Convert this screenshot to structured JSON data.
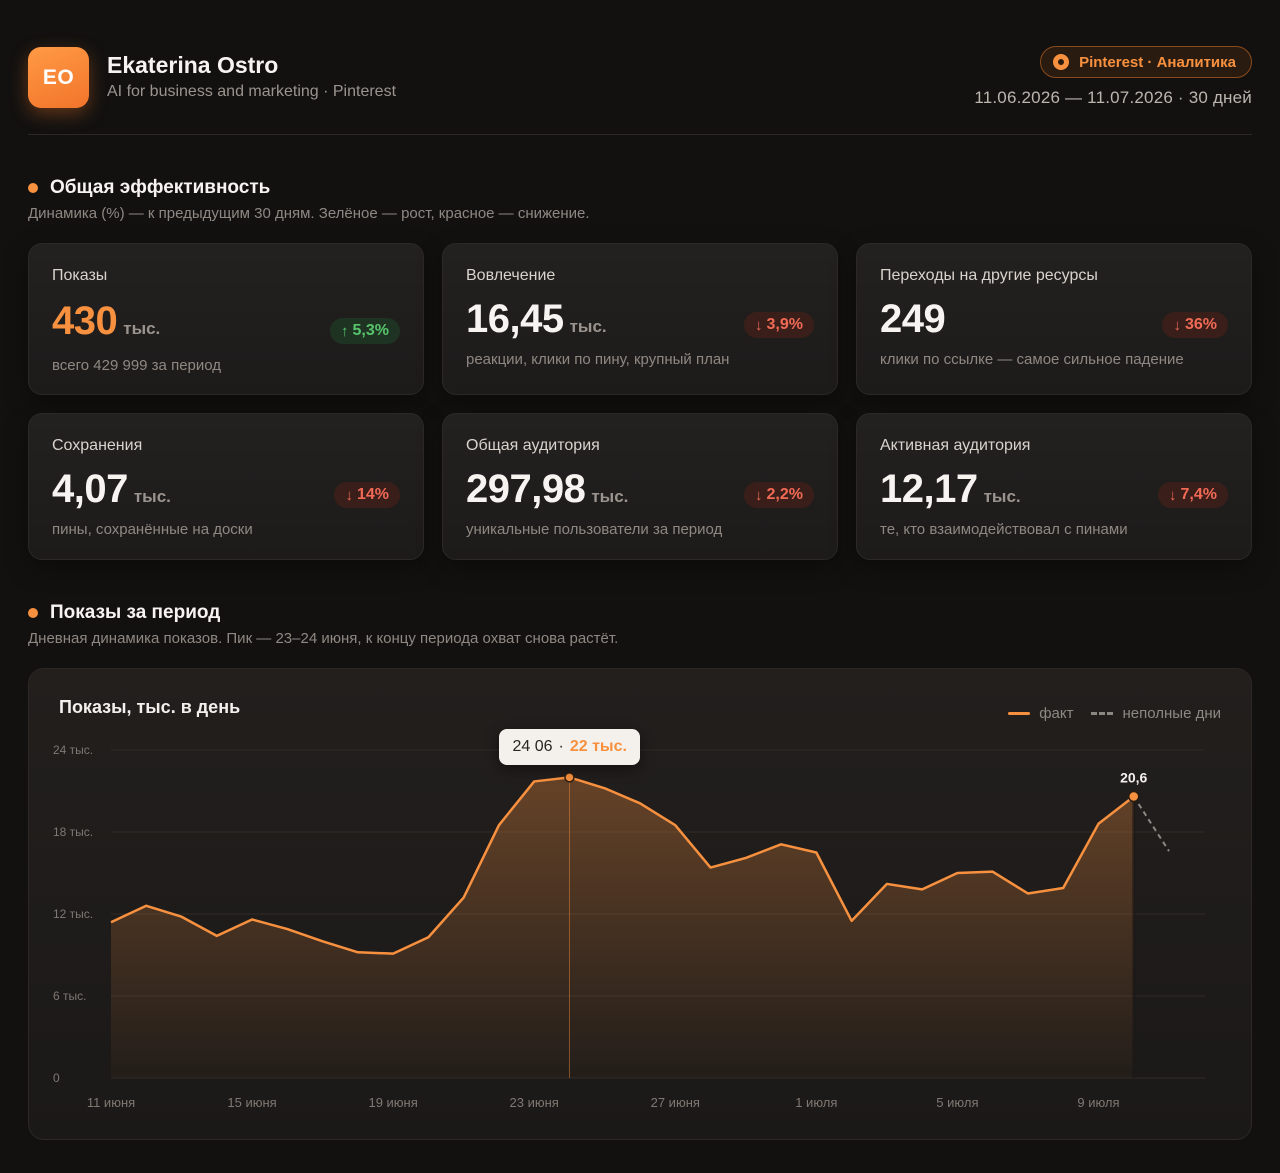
{
  "header": {
    "avatar_initials": "EO",
    "name": "Ekaterina Ostro",
    "subtitle": "AI for business and marketing · Pinterest",
    "badge": "Pinterest · Аналитика",
    "date_range": "11.06.2026 — 11.07.2026 · 30 дней"
  },
  "section1": {
    "title": "Общая эффективность",
    "description": "Динамика (%) — к предыдущим 30 дням. Зелёное — рост, красное — снижение."
  },
  "cards": [
    {
      "label": "Показы",
      "value": "430",
      "unit": "тыс.",
      "delta": "5,3%",
      "direction": "up",
      "sub": "всего 429 999 за период"
    },
    {
      "label": "Вовлечение",
      "value": "16,45",
      "unit": "тыс.",
      "delta": "3,9%",
      "direction": "down",
      "sub": "реакции, клики по пину, крупный план"
    },
    {
      "label": "Переходы на другие ресурсы",
      "value": "249",
      "unit": "",
      "delta": "36%",
      "direction": "down",
      "sub": "клики по ссылке — самое сильное падение"
    },
    {
      "label": "Сохранения",
      "value": "4,07",
      "unit": "тыс.",
      "delta": "14%",
      "direction": "down",
      "sub": "пины, сохранённые на доски"
    },
    {
      "label": "Общая аудитория",
      "value": "297,98",
      "unit": "тыс.",
      "delta": "2,2%",
      "direction": "down",
      "sub": "уникальные пользователи за период"
    },
    {
      "label": "Активная аудитория",
      "value": "12,17",
      "unit": "тыс.",
      "delta": "7,4%",
      "direction": "down",
      "sub": "те, кто взаимодействовал с пинами"
    }
  ],
  "section2": {
    "title": "Показы за период",
    "description": "Дневная динамика показов. Пик — 23–24 июня, к концу периода охват снова растёт."
  },
  "colors": {
    "accent": "#f8913f",
    "positive": "#57c46b",
    "negative": "#f06a55",
    "background": "#121110"
  },
  "chart_data": {
    "type": "area",
    "title": "Показы, тыс. в день",
    "legend": [
      "факт",
      "неполные дни"
    ],
    "legend_position": "top-right",
    "grid": true,
    "ylim": [
      0,
      24
    ],
    "y_ticks": [
      0,
      6,
      12,
      18,
      24
    ],
    "y_tick_labels": [
      "0",
      "6 тыс.",
      "12 тыс.",
      "18 тыс.",
      "24 тыс."
    ],
    "x_tick_labels": [
      "11 июня",
      "15 июня",
      "19 июня",
      "23 июня",
      "27 июня",
      "1 июля",
      "5 июля",
      "9 июля"
    ],
    "x_tick_positions": [
      "11.06",
      "15.06",
      "19.06",
      "23.06",
      "27.06",
      "01.07",
      "05.07",
      "09.07"
    ],
    "x": [
      "11.06",
      "12.06",
      "13.06",
      "14.06",
      "15.06",
      "16.06",
      "17.06",
      "18.06",
      "19.06",
      "20.06",
      "21.06",
      "22.06",
      "23.06",
      "24.06",
      "25.06",
      "26.06",
      "27.06",
      "28.06",
      "29.06",
      "30.06",
      "01.07",
      "02.07",
      "03.07",
      "04.07",
      "05.07",
      "06.07",
      "07.07",
      "08.07",
      "09.07",
      "10.07",
      "11.07"
    ],
    "series": [
      {
        "name": "факт",
        "values": [
          11.4,
          12.6,
          11.8,
          10.4,
          11.6,
          10.9,
          10.0,
          9.2,
          9.1,
          10.3,
          13.2,
          18.5,
          21.7,
          22.0,
          21.2,
          20.1,
          18.5,
          15.4,
          16.1,
          17.1,
          16.5,
          11.5,
          14.2,
          13.8,
          15.0,
          15.1,
          13.5,
          13.9,
          18.6,
          20.6,
          null
        ]
      },
      {
        "name": "неполные дни",
        "values": [
          null,
          null,
          null,
          null,
          null,
          null,
          null,
          null,
          null,
          null,
          null,
          null,
          null,
          null,
          null,
          null,
          null,
          null,
          null,
          null,
          null,
          null,
          null,
          null,
          null,
          null,
          null,
          null,
          null,
          20.6,
          16.6
        ]
      }
    ],
    "annotations": [
      {
        "x": "24.06",
        "label": "24 06",
        "value": "22 тыс."
      },
      {
        "x": "10.07",
        "label": "20,6"
      }
    ]
  }
}
